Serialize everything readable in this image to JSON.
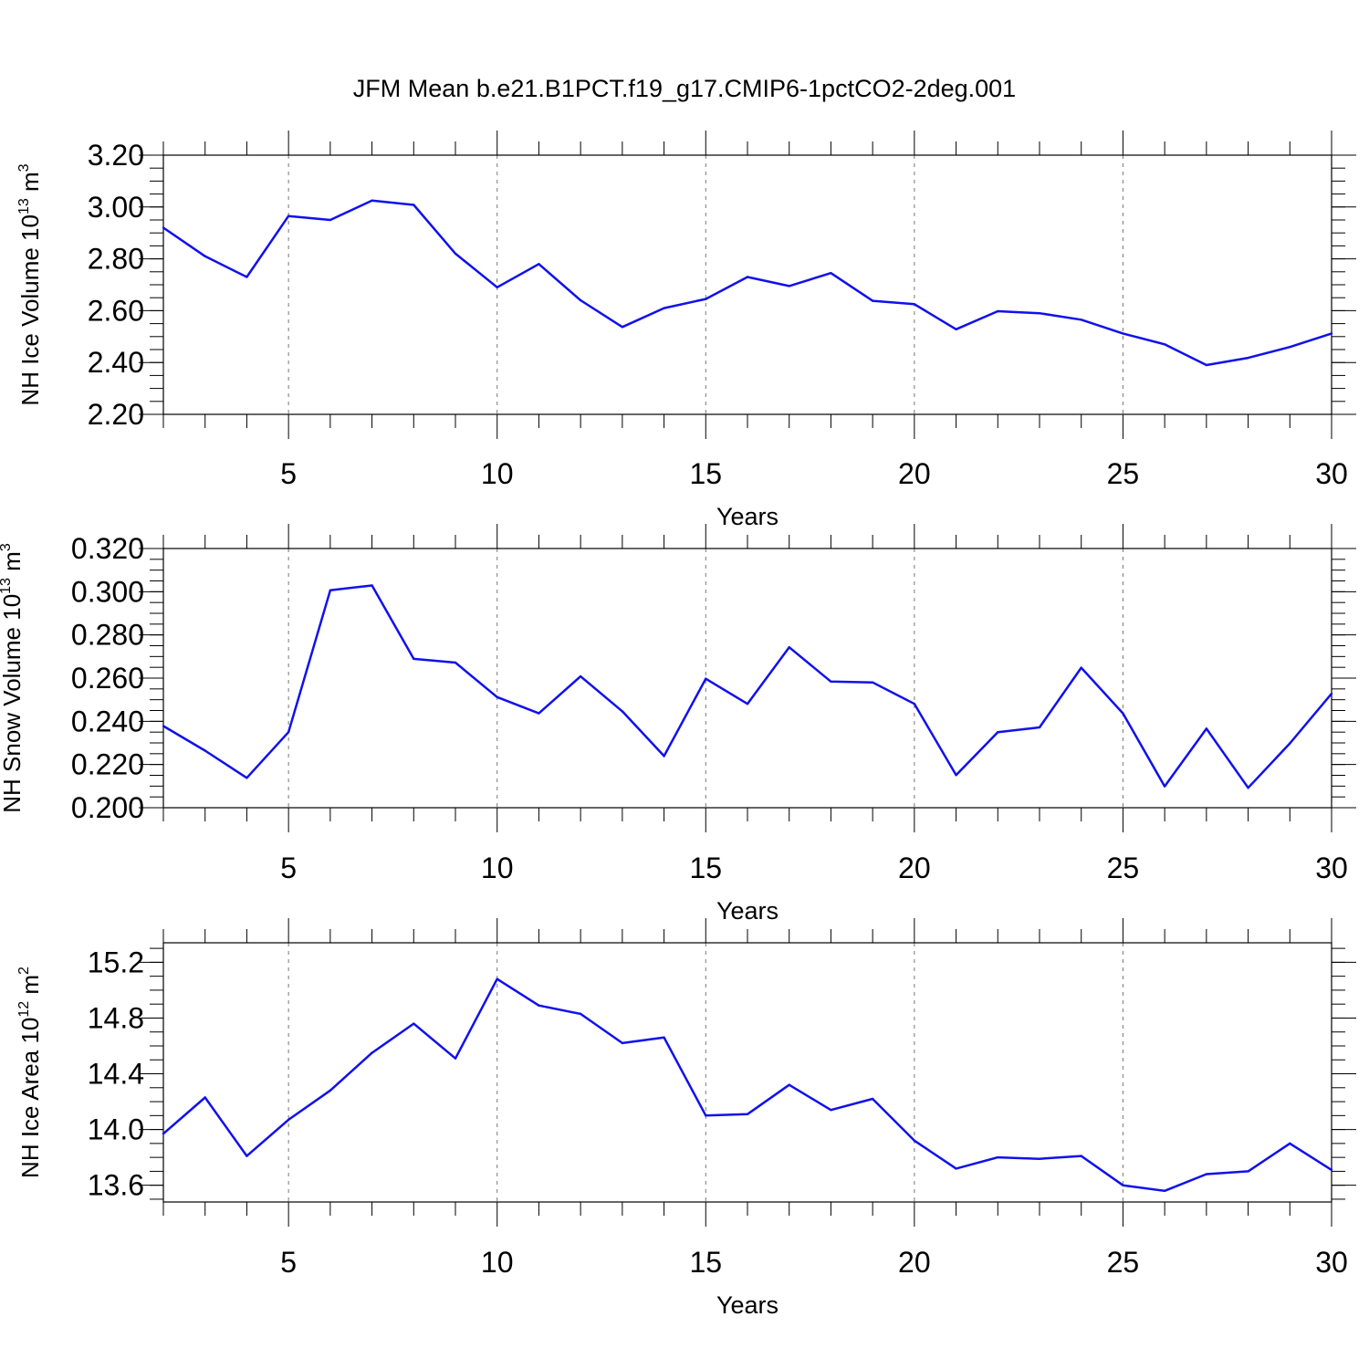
{
  "title": "JFM Mean b.e21.B1PCT.f19_g17.CMIP6-1pctCO2-2deg.001",
  "chart_data": [
    {
      "type": "line",
      "title": "",
      "xlabel": "Years",
      "ylabel": {
        "text": "NH Ice Volume 10",
        "sup": "13",
        "unit": " m",
        "unit_sup": "3"
      },
      "xlim": [
        2,
        30
      ],
      "ylim": [
        2.2,
        3.2
      ],
      "x_ticks": [
        "5",
        "10",
        "15",
        "20",
        "25",
        "30"
      ],
      "y_ticks": [
        "2.20",
        "2.40",
        "2.60",
        "2.80",
        "3.00",
        "3.20"
      ],
      "grid": "vertical dashed at major x ticks",
      "line_color": "#1010ee",
      "x": [
        2,
        3,
        4,
        5,
        6,
        7,
        8,
        9,
        10,
        11,
        12,
        13,
        14,
        15,
        16,
        17,
        18,
        19,
        20,
        21,
        22,
        23,
        24,
        25,
        26,
        27,
        28,
        29,
        30
      ],
      "series": [
        {
          "values": [
            2.92,
            2.81,
            2.73,
            2.965,
            2.95,
            3.025,
            3.008,
            2.82,
            2.69,
            2.78,
            2.64,
            2.537,
            2.61,
            2.645,
            2.73,
            2.695,
            2.745,
            2.638,
            2.625,
            2.528,
            2.598,
            2.59,
            2.565,
            2.512,
            2.47,
            2.39,
            2.418,
            2.46,
            2.512
          ]
        }
      ]
    },
    {
      "type": "line",
      "title": "",
      "xlabel": "Years",
      "ylabel": {
        "text": "NH Snow Volume 10",
        "sup": "13",
        "unit": " m",
        "unit_sup": "3"
      },
      "xlim": [
        2,
        30
      ],
      "ylim": [
        0.2,
        0.32
      ],
      "x_ticks": [
        "5",
        "10",
        "15",
        "20",
        "25",
        "30"
      ],
      "y_ticks": [
        "0.200",
        "0.220",
        "0.240",
        "0.260",
        "0.280",
        "0.300",
        "0.320"
      ],
      "grid": "vertical dashed at major x ticks",
      "line_color": "#1010ee",
      "x": [
        2,
        3,
        4,
        5,
        6,
        7,
        8,
        9,
        10,
        11,
        12,
        13,
        14,
        15,
        16,
        17,
        18,
        19,
        20,
        21,
        22,
        23,
        24,
        25,
        26,
        27,
        28,
        29,
        30
      ],
      "series": [
        {
          "values": [
            0.2378,
            0.2264,
            0.2138,
            0.235,
            0.3007,
            0.3029,
            0.2689,
            0.2672,
            0.2512,
            0.2437,
            0.2608,
            0.2446,
            0.2239,
            0.2597,
            0.2481,
            0.2743,
            0.2584,
            0.258,
            0.2481,
            0.2151,
            0.235,
            0.2372,
            0.2648,
            0.2437,
            0.2099,
            0.2366,
            0.2092,
            0.2298,
            0.2528
          ]
        }
      ]
    },
    {
      "type": "line",
      "title": "",
      "xlabel": "Years",
      "ylabel": {
        "text": "NH Ice Area 10",
        "sup": "12",
        "unit": " m",
        "unit_sup": "2"
      },
      "xlim": [
        2,
        30
      ],
      "ylim": [
        13.48,
        15.34
      ],
      "x_ticks": [
        "5",
        "10",
        "15",
        "20",
        "25",
        "30"
      ],
      "y_ticks": [
        "13.6",
        "14.0",
        "14.4",
        "14.8",
        "15.2"
      ],
      "grid": "vertical dashed at major x ticks",
      "line_color": "#1010ee",
      "x": [
        2,
        3,
        4,
        5,
        6,
        7,
        8,
        9,
        10,
        11,
        12,
        13,
        14,
        15,
        16,
        17,
        18,
        19,
        20,
        21,
        22,
        23,
        24,
        25,
        26,
        27,
        28,
        29,
        30
      ],
      "series": [
        {
          "values": [
            13.97,
            14.23,
            13.81,
            14.07,
            14.28,
            14.55,
            14.76,
            14.51,
            15.08,
            14.89,
            14.83,
            14.62,
            14.66,
            14.1,
            14.11,
            14.32,
            14.14,
            14.22,
            13.92,
            13.72,
            13.8,
            13.79,
            13.81,
            13.6,
            13.56,
            13.68,
            13.7,
            13.9,
            13.71
          ]
        }
      ]
    }
  ]
}
